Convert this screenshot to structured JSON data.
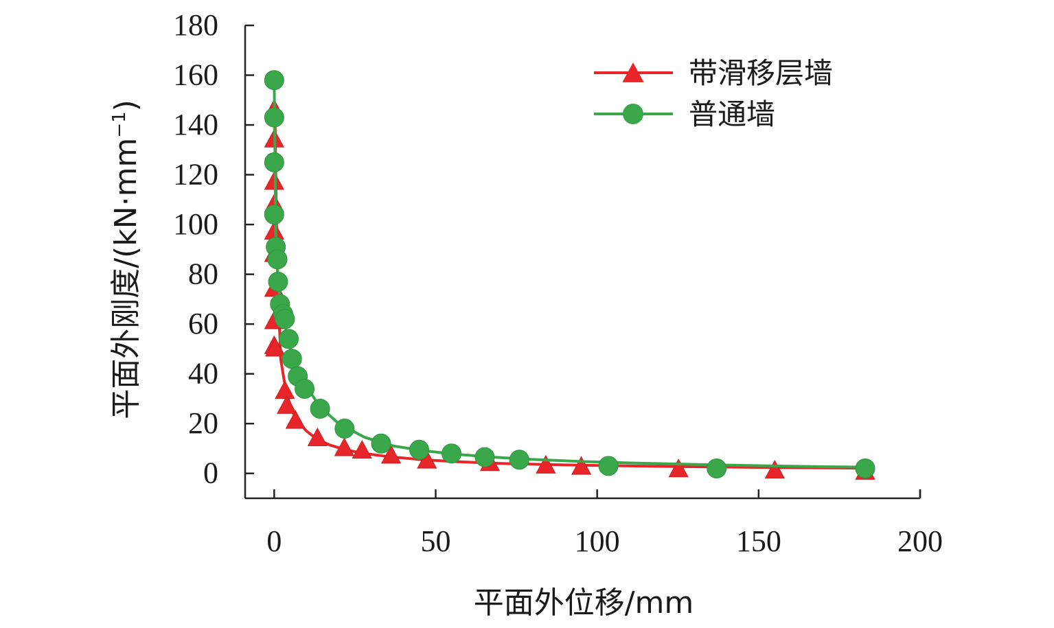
{
  "chart_data": {
    "type": "line",
    "xlabel": "平面外位移/mm",
    "ylabel": "平面外刚度/(kN·mm",
    "ylabel_sup": "−1",
    "ylabel_close": ")",
    "xlim": [
      -9,
      200
    ],
    "ylim": [
      -10,
      180
    ],
    "xticks": [
      0,
      50,
      100,
      150,
      200
    ],
    "yticks": [
      0,
      20,
      40,
      60,
      80,
      100,
      120,
      140,
      160,
      180
    ],
    "legend_position": "top-right",
    "series": [
      {
        "name": "带滑移层墙",
        "color": "#e8262a",
        "marker": "triangle",
        "x": [
          0.0,
          0.0,
          0.0,
          0.0,
          0.0,
          0.0,
          0.0,
          0.0,
          0.0,
          0.3,
          3.3,
          3.9,
          6.6,
          13.4,
          21.7,
          27.2,
          36.2,
          47.3,
          66.8,
          84.1,
          95.1,
          125.2,
          155.0,
          183.0
        ],
        "y": [
          146,
          134,
          117,
          108,
          97,
          88,
          74,
          61,
          51,
          50,
          33,
          27,
          21,
          14,
          10,
          9,
          7,
          5,
          4,
          3,
          2.5,
          1.5,
          1.0,
          0.5
        ],
        "fit_x": [
          0.3,
          0.6,
          1.0,
          1.5,
          2.0,
          3.0,
          4.0,
          6.0,
          8.0,
          10,
          13,
          17,
          22,
          28,
          35,
          45,
          55,
          70,
          90,
          110,
          135,
          160,
          183
        ],
        "fit_y": [
          140,
          108,
          82,
          64,
          46,
          38,
          31,
          24,
          20,
          17,
          14,
          11.5,
          9.5,
          8.0,
          6.8,
          5.6,
          4.8,
          4.0,
          3.4,
          3.0,
          2.6,
          2.3,
          2.1
        ]
      },
      {
        "name": "普通墙",
        "color": "#3aa84a",
        "marker": "circle",
        "x": [
          0.0,
          0.0,
          0.0,
          0.0,
          0.5,
          1.0,
          1.2,
          1.8,
          2.8,
          3.3,
          4.5,
          5.5,
          7.3,
          9.4,
          14.2,
          21.8,
          33.1,
          44.9,
          54.9,
          65.2,
          75.9,
          103.5,
          137.0,
          183.0
        ],
        "y": [
          158,
          143,
          125,
          104,
          91,
          86,
          77,
          68,
          64,
          62,
          54,
          46,
          39,
          34,
          26,
          18,
          12,
          9.5,
          8,
          6.5,
          5.5,
          3,
          2,
          2
        ],
        "fit_x": [
          0.0,
          0.5,
          1.2,
          2.0,
          3.0,
          4.5,
          6.0,
          8.0,
          10,
          14,
          20,
          28,
          37,
          47,
          57,
          68,
          80,
          95,
          110,
          130,
          150,
          170,
          183
        ],
        "fit_y": [
          158,
          95,
          78,
          68,
          61,
          53,
          46,
          40,
          35,
          27,
          20,
          14.5,
          11,
          9,
          7.6,
          6.5,
          5.6,
          4.8,
          4.2,
          3.6,
          3.1,
          2.7,
          2.5
        ]
      }
    ]
  }
}
